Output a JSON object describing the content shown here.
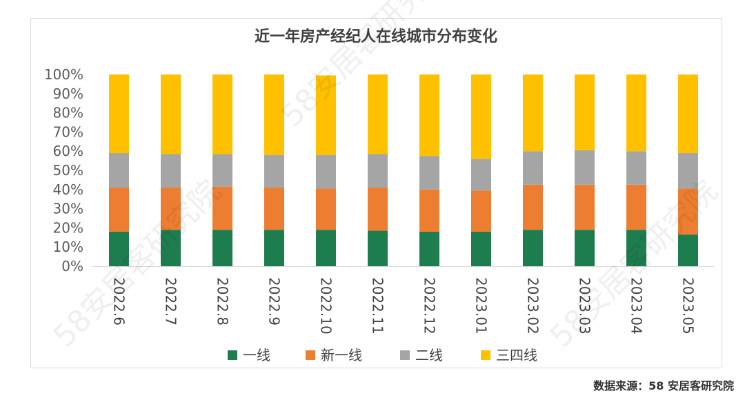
{
  "chart_data": {
    "type": "bar",
    "stacked": "percent",
    "title": "近一年房产经纪人在线城市分布变化",
    "categories": [
      "2022.6",
      "2022.7",
      "2022.8",
      "2022.9",
      "2022.10",
      "2022.11",
      "2022.12",
      "2023.01",
      "2023.02",
      "2023.03",
      "2023.04",
      "2023.05"
    ],
    "series": [
      {
        "name": "一线",
        "color": "#1e7d4f",
        "values": [
          18,
          19,
          19,
          19,
          19,
          18.5,
          18,
          18,
          19,
          19,
          19,
          16.5
        ]
      },
      {
        "name": "新一线",
        "color": "#ed7d31",
        "values": [
          23,
          22,
          22.5,
          22,
          21.5,
          22.5,
          22,
          21.5,
          23.5,
          23.5,
          23.5,
          24
        ]
      },
      {
        "name": "二线",
        "color": "#a5a5a5",
        "values": [
          18,
          17.5,
          17,
          17,
          17.5,
          17.5,
          17.5,
          16.5,
          17.5,
          18,
          17.5,
          18.5
        ]
      },
      {
        "name": "三四线",
        "color": "#ffc000",
        "values": [
          41,
          41.5,
          41.5,
          42,
          41.5,
          41.5,
          42.5,
          44,
          40,
          39.5,
          40,
          41
        ]
      }
    ],
    "yaxis": {
      "min": 0,
      "max": 100,
      "step": 10,
      "tick_labels": [
        "0%",
        "10%",
        "20%",
        "30%",
        "40%",
        "50%",
        "60%",
        "70%",
        "80%",
        "90%",
        "100%"
      ]
    },
    "legend_position": "bottom",
    "grid": false
  },
  "source": "数据来源：58 安居客研究院",
  "watermark": "58安居客研究院"
}
